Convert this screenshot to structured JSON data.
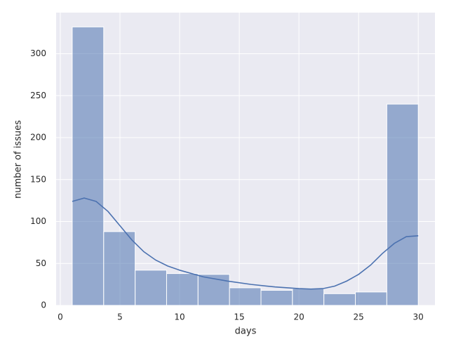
{
  "chart_data": {
    "type": "histogram",
    "xlabel": "days",
    "ylabel": "number of issues",
    "bins": [
      1,
      3.636,
      6.273,
      8.909,
      11.545,
      14.182,
      16.818,
      19.455,
      22.091,
      24.727,
      27.364,
      30
    ],
    "counts": [
      332,
      88,
      42,
      38,
      37,
      21,
      18,
      20,
      14,
      16,
      240
    ],
    "color": "#4c72b0",
    "kde": {
      "color": "#4c72b0",
      "x": [
        1,
        2,
        3,
        4,
        5,
        6,
        7,
        8,
        9,
        10,
        12,
        14,
        16,
        18,
        20,
        21,
        22,
        23,
        24,
        25,
        26,
        27,
        28,
        29,
        30
      ],
      "values": [
        124,
        128,
        124,
        112,
        95,
        78,
        64,
        54,
        47,
        42,
        34,
        29,
        25,
        22,
        20,
        19.5,
        20,
        23,
        29,
        37,
        48,
        62,
        74,
        82,
        83
      ]
    },
    "xlim": [
      -0.35,
      31.4
    ],
    "ylim": [
      0,
      349
    ],
    "xticks": [
      0,
      5,
      10,
      15,
      20,
      25,
      30
    ],
    "yticks": [
      0,
      50,
      100,
      150,
      200,
      250,
      300
    ],
    "grid": true
  }
}
